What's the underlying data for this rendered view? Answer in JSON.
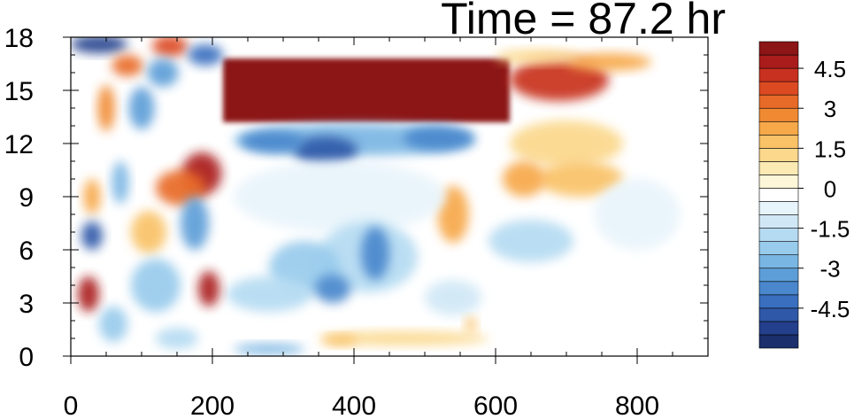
{
  "chart_data": {
    "type": "heatmap",
    "title": "Time = 87.2 hr",
    "xlim": [
      0,
      900
    ],
    "ylim": [
      0,
      18
    ],
    "x_ticks": [
      {
        "value": 0,
        "label": "0"
      },
      {
        "value": 200,
        "label": "200"
      },
      {
        "value": 400,
        "label": "400"
      },
      {
        "value": 600,
        "label": "600"
      },
      {
        "value": 800,
        "label": "800"
      }
    ],
    "y_ticks": [
      {
        "value": 0,
        "label": "0"
      },
      {
        "value": 3,
        "label": "3"
      },
      {
        "value": 6,
        "label": "6"
      },
      {
        "value": 9,
        "label": "9"
      },
      {
        "value": 12,
        "label": "12"
      },
      {
        "value": 15,
        "label": "15"
      },
      {
        "value": 18,
        "label": "18"
      }
    ],
    "grid": false,
    "colorbar": {
      "placement": "right",
      "levels": [
        -5.5,
        -5,
        -4.5,
        -4,
        -3.5,
        -3,
        -2.5,
        -2,
        -1.5,
        -1,
        -0.5,
        0,
        0.5,
        1,
        1.5,
        2,
        2.5,
        3,
        3.5,
        4,
        4.5,
        5,
        5.5
      ],
      "colors": [
        "#1a2f6b",
        "#243f8c",
        "#2f58a8",
        "#3a6fbf",
        "#4a87cc",
        "#5d9ed8",
        "#7ab6e3",
        "#98cbec",
        "#b5dbf2",
        "#d0e8f6",
        "#e8f4fb",
        "#ffffff",
        "#fdf6d8",
        "#fceab4",
        "#fbd88c",
        "#f9c267",
        "#f7a848",
        "#f08a32",
        "#e86a28",
        "#dc4a22",
        "#c8301f",
        "#aa1c1c",
        "#8c1515"
      ],
      "labels": [
        {
          "value": 4.5,
          "label": "4.5"
        },
        {
          "value": 3,
          "label": "3"
        },
        {
          "value": 1.5,
          "label": "1.5"
        },
        {
          "value": 0,
          "label": "0"
        },
        {
          "value": -1.5,
          "label": "-1.5"
        },
        {
          "value": -3,
          "label": "-3"
        },
        {
          "value": -4.5,
          "label": "-4.5"
        }
      ]
    },
    "features": [
      {
        "kind": "rect",
        "x": [
          215,
          620
        ],
        "y": [
          13.2,
          16.8
        ],
        "value": 5.5
      },
      {
        "kind": "ellipse",
        "x": 690,
        "y": 15.6,
        "rx": 70,
        "ry": 1.2,
        "value": 4.2
      },
      {
        "kind": "ellipse",
        "x": 760,
        "y": 16.6,
        "rx": 60,
        "ry": 0.5,
        "value": 2.2
      },
      {
        "kind": "ellipse",
        "x": 660,
        "y": 16.9,
        "rx": 60,
        "ry": 0.4,
        "value": 1.2
      },
      {
        "kind": "ellipse",
        "x": 400,
        "y": 12.2,
        "rx": 170,
        "ry": 0.9,
        "value": -2.5
      },
      {
        "kind": "ellipse",
        "x": 360,
        "y": 11.6,
        "rx": 45,
        "ry": 0.8,
        "value": -4.5
      },
      {
        "kind": "ellipse",
        "x": 285,
        "y": 12.1,
        "rx": 45,
        "ry": 0.6,
        "value": -3.5
      },
      {
        "kind": "ellipse",
        "x": 520,
        "y": 12.3,
        "rx": 50,
        "ry": 0.7,
        "value": -3.5
      },
      {
        "kind": "ellipse",
        "x": 700,
        "y": 12.0,
        "rx": 80,
        "ry": 1.3,
        "value": 1.2
      },
      {
        "kind": "ellipse",
        "x": 720,
        "y": 10.0,
        "rx": 60,
        "ry": 1.0,
        "value": 1.8
      },
      {
        "kind": "ellipse",
        "x": 640,
        "y": 10.0,
        "rx": 30,
        "ry": 1.0,
        "value": 2.5
      },
      {
        "kind": "ellipse",
        "x": 540,
        "y": 8.0,
        "rx": 22,
        "ry": 1.6,
        "value": 2.5
      },
      {
        "kind": "ellipse",
        "x": 380,
        "y": 9.0,
        "rx": 150,
        "ry": 2.0,
        "value": -0.6
      },
      {
        "kind": "ellipse",
        "x": 420,
        "y": 5.6,
        "rx": 70,
        "ry": 2.0,
        "value": -1.8
      },
      {
        "kind": "ellipse",
        "x": 430,
        "y": 5.8,
        "rx": 20,
        "ry": 1.5,
        "value": -3.5
      },
      {
        "kind": "ellipse",
        "x": 330,
        "y": 5.0,
        "rx": 50,
        "ry": 1.5,
        "value": -2.0
      },
      {
        "kind": "ellipse",
        "x": 280,
        "y": 3.5,
        "rx": 60,
        "ry": 1.0,
        "value": -1.8
      },
      {
        "kind": "ellipse",
        "x": 370,
        "y": 3.8,
        "rx": 25,
        "ry": 0.8,
        "value": -3.5
      },
      {
        "kind": "ellipse",
        "x": 650,
        "y": 6.5,
        "rx": 60,
        "ry": 1.2,
        "value": -1.5
      },
      {
        "kind": "ellipse",
        "x": 540,
        "y": 3.3,
        "rx": 40,
        "ry": 1.0,
        "value": -1.2
      },
      {
        "kind": "ellipse",
        "x": 470,
        "y": 1.0,
        "rx": 120,
        "ry": 0.4,
        "value": 1.2
      },
      {
        "kind": "ellipse",
        "x": 380,
        "y": 0.9,
        "rx": 25,
        "ry": 0.3,
        "value": 2.0
      },
      {
        "kind": "ellipse",
        "x": 565,
        "y": 1.8,
        "rx": 8,
        "ry": 0.4,
        "value": 2.0
      },
      {
        "kind": "ellipse",
        "x": 280,
        "y": 0.4,
        "rx": 50,
        "ry": 0.3,
        "value": -2.5
      },
      {
        "kind": "ellipse",
        "x": 40,
        "y": 17.6,
        "rx": 40,
        "ry": 0.5,
        "value": -5.0
      },
      {
        "kind": "ellipse",
        "x": 140,
        "y": 17.5,
        "rx": 25,
        "ry": 0.6,
        "value": 4.0
      },
      {
        "kind": "ellipse",
        "x": 190,
        "y": 17.0,
        "rx": 25,
        "ry": 0.6,
        "value": -4.0
      },
      {
        "kind": "ellipse",
        "x": 80,
        "y": 16.4,
        "rx": 22,
        "ry": 0.6,
        "value": 3.5
      },
      {
        "kind": "ellipse",
        "x": 130,
        "y": 16.0,
        "rx": 22,
        "ry": 0.8,
        "value": -3.0
      },
      {
        "kind": "ellipse",
        "x": 50,
        "y": 14.0,
        "rx": 12,
        "ry": 1.3,
        "value": 3.0
      },
      {
        "kind": "ellipse",
        "x": 100,
        "y": 14.0,
        "rx": 18,
        "ry": 1.2,
        "value": -3.0
      },
      {
        "kind": "ellipse",
        "x": 185,
        "y": 10.3,
        "rx": 28,
        "ry": 1.2,
        "value": 5.0
      },
      {
        "kind": "ellipse",
        "x": 155,
        "y": 9.5,
        "rx": 35,
        "ry": 1.0,
        "value": 3.5
      },
      {
        "kind": "ellipse",
        "x": 30,
        "y": 9.0,
        "rx": 12,
        "ry": 1.0,
        "value": 2.5
      },
      {
        "kind": "ellipse",
        "x": 70,
        "y": 9.8,
        "rx": 12,
        "ry": 1.2,
        "value": -2.5
      },
      {
        "kind": "ellipse",
        "x": 30,
        "y": 6.8,
        "rx": 15,
        "ry": 0.8,
        "value": -4.5
      },
      {
        "kind": "ellipse",
        "x": 110,
        "y": 7.0,
        "rx": 25,
        "ry": 1.2,
        "value": 2.0
      },
      {
        "kind": "ellipse",
        "x": 175,
        "y": 7.5,
        "rx": 20,
        "ry": 1.5,
        "value": -3.0
      },
      {
        "kind": "ellipse",
        "x": 25,
        "y": 3.5,
        "rx": 15,
        "ry": 1.0,
        "value": 5.0
      },
      {
        "kind": "ellipse",
        "x": 120,
        "y": 4.0,
        "rx": 35,
        "ry": 1.5,
        "value": -2.0
      },
      {
        "kind": "ellipse",
        "x": 195,
        "y": 3.8,
        "rx": 15,
        "ry": 1.0,
        "value": 5.0
      },
      {
        "kind": "ellipse",
        "x": 60,
        "y": 1.8,
        "rx": 20,
        "ry": 1.0,
        "value": -2.0
      },
      {
        "kind": "ellipse",
        "x": 150,
        "y": 1.0,
        "rx": 30,
        "ry": 0.6,
        "value": -1.5
      },
      {
        "kind": "ellipse",
        "x": 800,
        "y": 8.0,
        "rx": 60,
        "ry": 2.0,
        "value": -0.7
      }
    ]
  }
}
